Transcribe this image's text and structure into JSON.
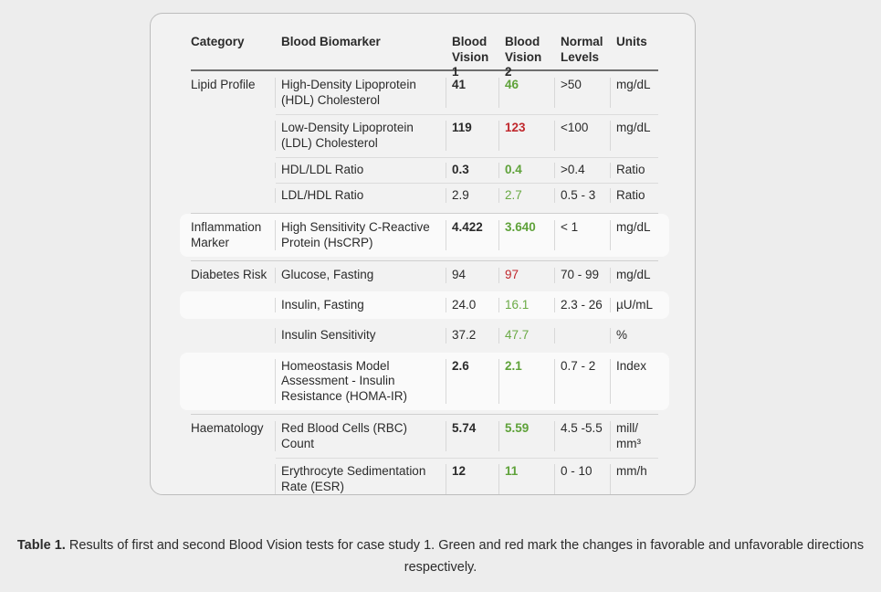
{
  "headers": {
    "category": "Category",
    "biomarker": "Blood Biomarker",
    "bv1": "Blood Vision 1",
    "bv2": "Blood Vision 2",
    "normal": "Normal Levels",
    "units": "Units"
  },
  "rows": [
    {
      "category": "Lipid Profile",
      "biomarker": "High-Density Lipoprotein (HDL) Cholesterol",
      "bv1": "41",
      "bv2": "46",
      "normal": ">50",
      "units": "mg/dL"
    },
    {
      "category": "",
      "biomarker": "Low-Density Lipoprotein (LDL) Cholesterol",
      "bv1": "119",
      "bv2": "123",
      "normal": "<100",
      "units": "mg/dL"
    },
    {
      "category": "",
      "biomarker": "HDL/LDL Ratio",
      "bv1": "0.3",
      "bv2": "0.4",
      "normal": ">0.4",
      "units": "Ratio"
    },
    {
      "category": "",
      "biomarker": "LDL/HDL Ratio",
      "bv1": "2.9",
      "bv2": "2.7",
      "normal": "0.5 - 3",
      "units": "Ratio"
    },
    {
      "category": "Inflammation Marker",
      "biomarker": "High Sensitivity C-Reactive Protein (HsCRP)",
      "bv1": "4.422",
      "bv2": "3.640",
      "normal": "< 1",
      "units": "mg/dL"
    },
    {
      "category": "Diabetes Risk",
      "biomarker": "Glucose, Fasting",
      "bv1": "94",
      "bv2": "97",
      "normal": "70 - 99",
      "units": "mg/dL"
    },
    {
      "category": "",
      "biomarker": "Insulin, Fasting",
      "bv1": "24.0",
      "bv2": "16.1",
      "normal": "2.3 - 26",
      "units": "µU/mL"
    },
    {
      "category": "",
      "biomarker": "Insulin Sensitivity",
      "bv1": "37.2",
      "bv2": "47.7",
      "normal": "",
      "units": "%"
    },
    {
      "category": "",
      "biomarker": "Homeostasis Model Assessment - Insulin Resistance (HOMA-IR)",
      "bv1": "2.6",
      "bv2": "2.1",
      "normal": "0.7 - 2",
      "units": "Index"
    },
    {
      "category": "Haematology",
      "biomarker": "Red Blood Cells (RBC) Count",
      "bv1": "5.74",
      "bv2": "5.59",
      "normal": "4.5 -5.5",
      "units": "mill/ mm³"
    },
    {
      "category": "",
      "biomarker": "Erythrocyte Sedimentation Rate (ESR)",
      "bv1": "12",
      "bv2": "11",
      "normal": "0 - 10",
      "units": "mm/h"
    }
  ],
  "colors": {
    "favorable": "#5fa23a",
    "unfavorable": "#c0282d"
  },
  "caption": {
    "label": "Table 1.",
    "text": "Results of first and second Blood Vision tests for case study 1. Green and red mark the changes in favorable and unfavorable directions respectively."
  }
}
